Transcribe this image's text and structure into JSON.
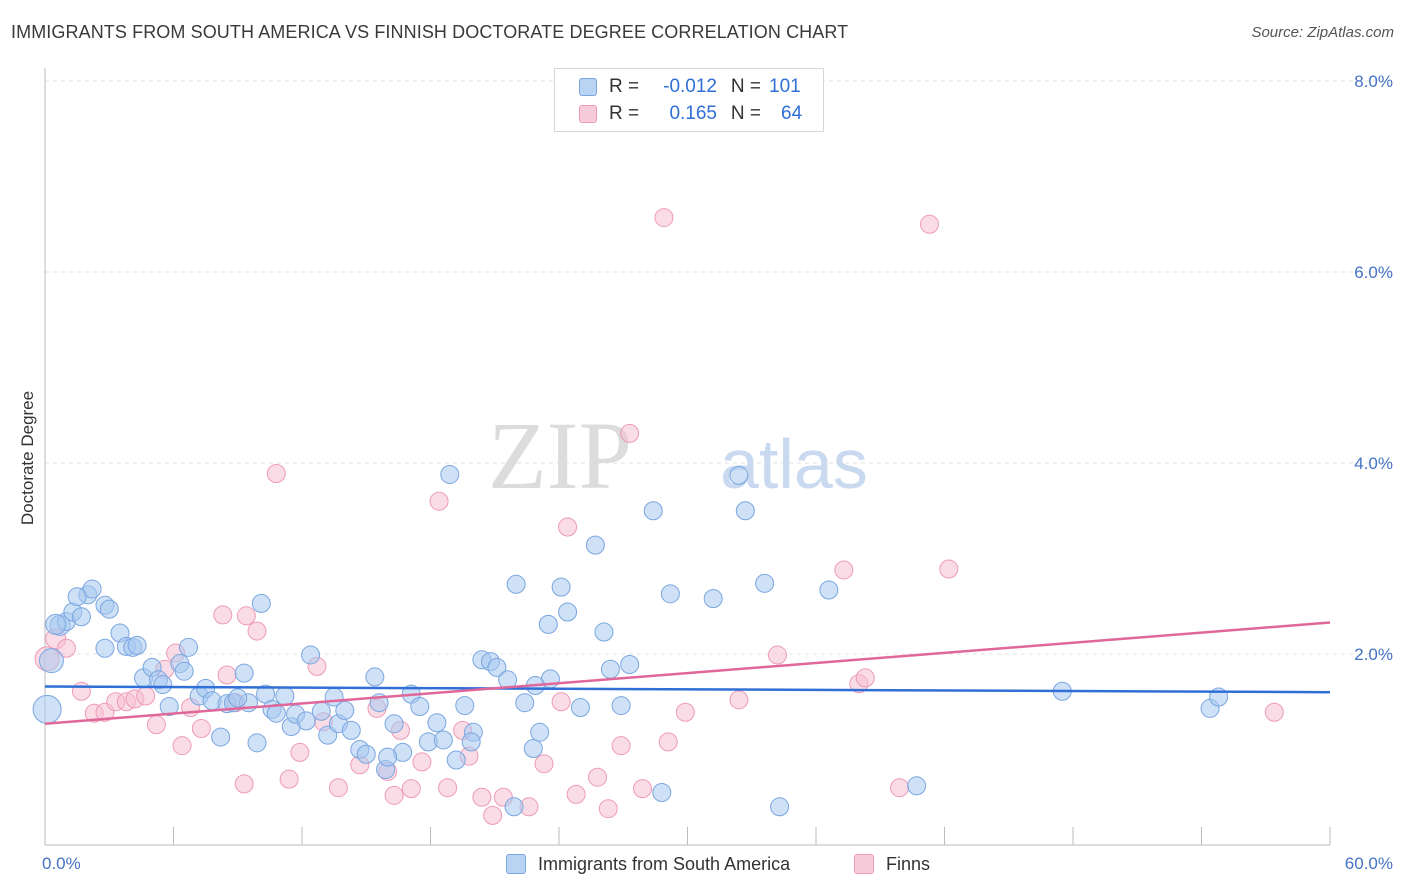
{
  "title": "IMMIGRANTS FROM SOUTH AMERICA VS FINNISH DOCTORATE DEGREE CORRELATION CHART",
  "source": "Source: ZipAtlas.com",
  "watermark": {
    "zip": "ZIP",
    "atlas": "atlas"
  },
  "legend": {
    "series1": {
      "r_label": "R =",
      "r_value": "-0.012",
      "n_label": "N =",
      "n_value": "101"
    },
    "series2": {
      "r_label": "R =",
      "r_value": "0.165",
      "n_label": "N =",
      "n_value": "64"
    }
  },
  "bottom_legend": {
    "series1": "Immigrants from South America",
    "series2": "Finns"
  },
  "colors": {
    "series1_fill": "#a8c8f0",
    "series1_stroke": "#7aa6e0",
    "series1_line": "#2f6fd6",
    "series2_fill": "#f6c0d2",
    "series2_stroke": "#ee9bb8",
    "series2_line": "#e0679a",
    "axis_label": "#4472c4",
    "grid": "#e2e2e2"
  },
  "chart_data": {
    "type": "scatter",
    "title": "IMMIGRANTS FROM SOUTH AMERICA VS FINNISH DOCTORATE DEGREE CORRELATION CHART",
    "xlabel": "",
    "ylabel": "Doctorate Degree",
    "xlim": [
      0,
      60
    ],
    "ylim": [
      0,
      8.4
    ],
    "x_tick_labels": [
      "0.0%",
      "60.0%"
    ],
    "y_ticks": [
      2,
      4,
      6,
      8
    ],
    "y_tick_labels": [
      "2.0%",
      "4.0%",
      "6.0%",
      "8.0%"
    ],
    "grid": true,
    "legend_position": "top-center",
    "series": [
      {
        "name": "Immigrants from South America",
        "r": -0.012,
        "n": 101,
        "trend": {
          "x": [
            0,
            60
          ],
          "y": [
            1.66,
            1.6
          ]
        },
        "points": [
          [
            0.1,
            1.42,
            14
          ],
          [
            0.3,
            1.93,
            12
          ],
          [
            0.7,
            2.3,
            10
          ],
          [
            1.0,
            2.34,
            9
          ],
          [
            1.3,
            2.44,
            9
          ],
          [
            1.7,
            2.39,
            9
          ],
          [
            2.0,
            2.62,
            9
          ],
          [
            2.2,
            2.68,
            9
          ],
          [
            2.8,
            2.51,
            9
          ],
          [
            2.8,
            2.06,
            9
          ],
          [
            3.5,
            2.22,
            9
          ],
          [
            3.8,
            2.08,
            9
          ],
          [
            4.1,
            2.07,
            9
          ],
          [
            4.3,
            2.09,
            9
          ],
          [
            4.6,
            1.75,
            9
          ],
          [
            5.0,
            1.86,
            9
          ],
          [
            5.3,
            1.73,
            9
          ],
          [
            5.8,
            1.45,
            9
          ],
          [
            6.3,
            1.9,
            9
          ],
          [
            6.5,
            1.82,
            9
          ],
          [
            6.7,
            2.07,
            9
          ],
          [
            7.2,
            1.56,
            9
          ],
          [
            7.5,
            1.64,
            9
          ],
          [
            7.8,
            1.51,
            9
          ],
          [
            8.2,
            1.13,
            9
          ],
          [
            8.5,
            1.48,
            9
          ],
          [
            8.8,
            1.49,
            9
          ],
          [
            9.3,
            1.8,
            9
          ],
          [
            9.5,
            1.49,
            9
          ],
          [
            9.9,
            1.07,
            9
          ],
          [
            10.1,
            2.53,
            9
          ],
          [
            10.3,
            1.58,
            9
          ],
          [
            10.6,
            1.42,
            9
          ],
          [
            10.8,
            1.38,
            9
          ],
          [
            11.2,
            1.56,
            9
          ],
          [
            11.5,
            1.24,
            9
          ],
          [
            11.7,
            1.37,
            9
          ],
          [
            12.2,
            1.3,
            9
          ],
          [
            12.4,
            1.99,
            9
          ],
          [
            12.9,
            1.4,
            9
          ],
          [
            13.2,
            1.15,
            9
          ],
          [
            13.5,
            1.55,
            9
          ],
          [
            13.7,
            1.27,
            9
          ],
          [
            14.0,
            1.41,
            9
          ],
          [
            14.3,
            1.2,
            9
          ],
          [
            14.7,
            1.0,
            9
          ],
          [
            15.0,
            0.95,
            9
          ],
          [
            15.4,
            1.76,
            9
          ],
          [
            15.6,
            1.49,
            9
          ],
          [
            15.9,
            0.79,
            9
          ],
          [
            16.3,
            1.27,
            9
          ],
          [
            16.7,
            0.97,
            9
          ],
          [
            17.1,
            1.58,
            9
          ],
          [
            17.5,
            1.45,
            9
          ],
          [
            17.9,
            1.08,
            9
          ],
          [
            18.3,
            1.28,
            9
          ],
          [
            18.6,
            1.1,
            9
          ],
          [
            18.9,
            3.88,
            9
          ],
          [
            19.2,
            0.89,
            9
          ],
          [
            19.6,
            1.46,
            9
          ],
          [
            20.0,
            1.18,
            9
          ],
          [
            20.4,
            1.94,
            9
          ],
          [
            20.8,
            1.92,
            9
          ],
          [
            21.1,
            1.86,
            9
          ],
          [
            21.6,
            1.73,
            9
          ],
          [
            21.9,
            0.4,
            9
          ],
          [
            22.0,
            2.73,
            9
          ],
          [
            22.4,
            1.49,
            9
          ],
          [
            22.8,
            1.01,
            9
          ],
          [
            23.1,
            1.18,
            9
          ],
          [
            23.6,
            1.74,
            9
          ],
          [
            23.5,
            2.31,
            9
          ],
          [
            24.1,
            2.7,
            9
          ],
          [
            24.4,
            2.44,
            9
          ],
          [
            25.0,
            1.44,
            9
          ],
          [
            25.7,
            3.14,
            9
          ],
          [
            26.1,
            2.23,
            9
          ],
          [
            26.4,
            1.84,
            9
          ],
          [
            26.9,
            1.46,
            9
          ],
          [
            27.3,
            1.89,
            9
          ],
          [
            28.4,
            3.5,
            9
          ],
          [
            28.8,
            0.55,
            9
          ],
          [
            29.2,
            2.63,
            9
          ],
          [
            31.2,
            2.58,
            9
          ],
          [
            32.4,
            3.87,
            9
          ],
          [
            32.7,
            3.5,
            9
          ],
          [
            33.6,
            2.74,
            9
          ],
          [
            34.3,
            0.4,
            9
          ],
          [
            36.6,
            2.67,
            9
          ],
          [
            40.7,
            0.62,
            9
          ],
          [
            47.5,
            1.61,
            9
          ],
          [
            54.4,
            1.43,
            9
          ],
          [
            54.8,
            1.55,
            9
          ],
          [
            0.5,
            2.31,
            10
          ],
          [
            1.5,
            2.6,
            9
          ],
          [
            3.0,
            2.47,
            9
          ],
          [
            5.5,
            1.68,
            9
          ],
          [
            9.0,
            1.54,
            9
          ],
          [
            16.0,
            0.92,
            9
          ],
          [
            19.9,
            1.08,
            9
          ],
          [
            22.9,
            1.67,
            9
          ]
        ]
      },
      {
        "name": "Finns",
        "r": 0.165,
        "n": 64,
        "trend": {
          "x": [
            0,
            60
          ],
          "y": [
            1.27,
            2.33
          ]
        },
        "points": [
          [
            0.1,
            1.95,
            12
          ],
          [
            0.5,
            2.16,
            10
          ],
          [
            1.0,
            2.06,
            9
          ],
          [
            1.7,
            1.61,
            9
          ],
          [
            2.3,
            1.38,
            9
          ],
          [
            2.8,
            1.39,
            9
          ],
          [
            3.3,
            1.5,
            9
          ],
          [
            3.8,
            1.5,
            9
          ],
          [
            4.2,
            1.53,
            9
          ],
          [
            4.7,
            1.56,
            9
          ],
          [
            5.2,
            1.26,
            9
          ],
          [
            5.6,
            1.84,
            9
          ],
          [
            6.1,
            2.01,
            9
          ],
          [
            6.4,
            1.04,
            9
          ],
          [
            6.8,
            1.44,
            9
          ],
          [
            7.3,
            1.22,
            9
          ],
          [
            8.3,
            2.41,
            9
          ],
          [
            8.5,
            1.78,
            9
          ],
          [
            8.9,
            1.49,
            9
          ],
          [
            9.3,
            0.64,
            9
          ],
          [
            9.4,
            2.4,
            9
          ],
          [
            9.9,
            2.24,
            9
          ],
          [
            10.8,
            3.89,
            9
          ],
          [
            11.4,
            0.69,
            9
          ],
          [
            11.9,
            0.97,
            9
          ],
          [
            12.7,
            1.87,
            9
          ],
          [
            13.0,
            1.29,
            9
          ],
          [
            13.7,
            0.6,
            9
          ],
          [
            14.7,
            0.84,
            9
          ],
          [
            15.5,
            1.43,
            9
          ],
          [
            16.0,
            0.77,
            9
          ],
          [
            16.3,
            0.52,
            9
          ],
          [
            16.6,
            1.2,
            9
          ],
          [
            17.1,
            0.59,
            9
          ],
          [
            17.6,
            0.87,
            9
          ],
          [
            18.4,
            3.6,
            9
          ],
          [
            18.8,
            0.6,
            9
          ],
          [
            19.5,
            1.2,
            9
          ],
          [
            19.8,
            0.93,
            9
          ],
          [
            20.4,
            0.5,
            9
          ],
          [
            20.9,
            0.31,
            9
          ],
          [
            21.4,
            0.5,
            9
          ],
          [
            22.6,
            0.4,
            9
          ],
          [
            23.3,
            0.85,
            9
          ],
          [
            24.1,
            1.5,
            9
          ],
          [
            24.4,
            3.33,
            9
          ],
          [
            24.8,
            0.53,
            9
          ],
          [
            25.8,
            0.71,
            9
          ],
          [
            26.3,
            0.38,
            9
          ],
          [
            26.9,
            1.04,
            9
          ],
          [
            27.3,
            4.31,
            9
          ],
          [
            27.9,
            0.59,
            9
          ],
          [
            28.9,
            6.57,
            9
          ],
          [
            29.1,
            1.08,
            9
          ],
          [
            29.9,
            1.39,
            9
          ],
          [
            32.4,
            1.52,
            9
          ],
          [
            34.2,
            1.99,
            9
          ],
          [
            37.3,
            2.88,
            9
          ],
          [
            38.0,
            1.69,
            9
          ],
          [
            38.3,
            1.75,
            9
          ],
          [
            39.9,
            0.6,
            9
          ],
          [
            41.3,
            6.5,
            9
          ],
          [
            42.2,
            2.89,
            9
          ],
          [
            57.4,
            1.39,
            9
          ]
        ]
      }
    ]
  }
}
